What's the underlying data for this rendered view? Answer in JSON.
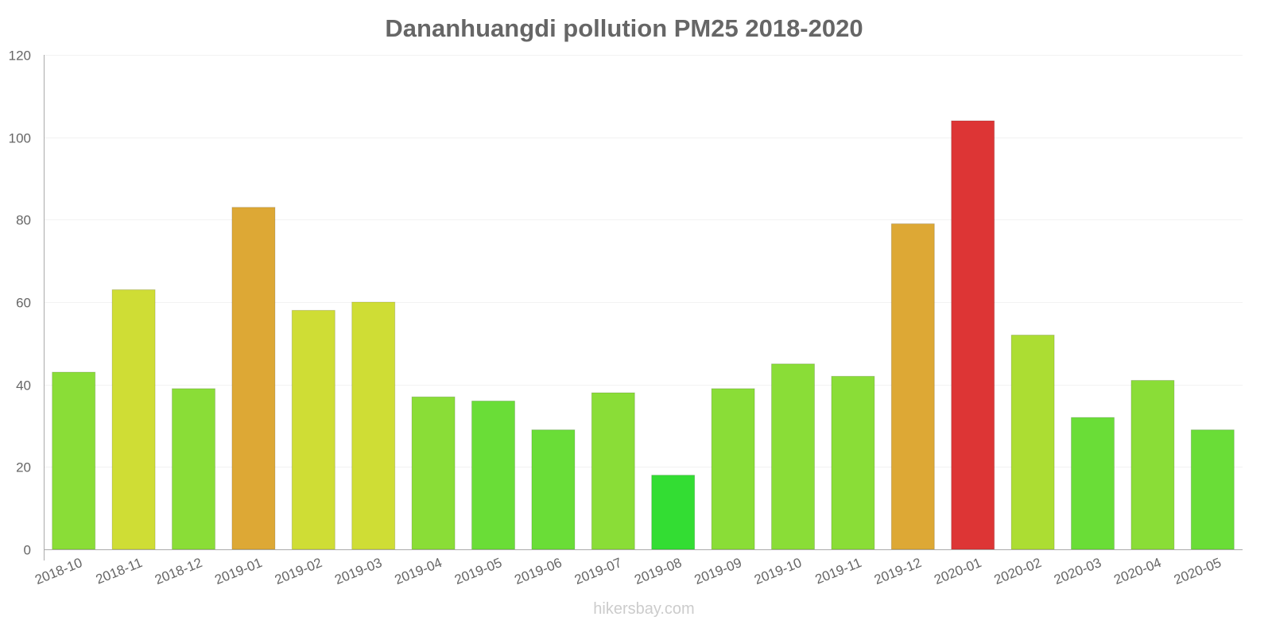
{
  "chart_data": {
    "type": "bar",
    "title": "Dananhuangdi pollution PM25 2018-2020",
    "xlabel": "",
    "ylabel": "",
    "ylim": [
      0,
      120
    ],
    "yticks": [
      0,
      20,
      40,
      60,
      80,
      100,
      120
    ],
    "grid": true,
    "categories": [
      "2018-10",
      "2018-11",
      "2018-12",
      "2019-01",
      "2019-02",
      "2019-03",
      "2019-04",
      "2019-05",
      "2019-06",
      "2019-07",
      "2019-08",
      "2019-09",
      "2019-10",
      "2019-11",
      "2019-12",
      "2020-01",
      "2020-02",
      "2020-03",
      "2020-04",
      "2020-05"
    ],
    "values": [
      43,
      63,
      39,
      83,
      58,
      60,
      37,
      36,
      29,
      38,
      18,
      39,
      45,
      42,
      79,
      104,
      52,
      32,
      41,
      29
    ],
    "colors": [
      "#8add37",
      "#cfdd35",
      "#8add37",
      "#dda835",
      "#cfdd35",
      "#cfdd35",
      "#8add37",
      "#6add37",
      "#6add37",
      "#8add37",
      "#33dd33",
      "#8add37",
      "#8add37",
      "#8add37",
      "#dda835",
      "#dd3535",
      "#acdd33",
      "#6add37",
      "#8add37",
      "#6add37"
    ]
  },
  "watermark": "hikersbay.com"
}
